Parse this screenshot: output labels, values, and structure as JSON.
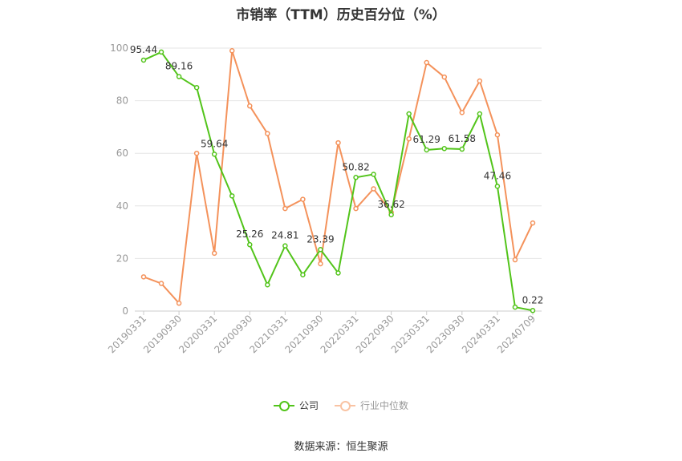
{
  "chart_data": {
    "type": "line",
    "title": "市销率（TTM）历史百分位（%）",
    "x_tick_labels": [
      "20190331",
      "20190930",
      "20200331",
      "20200930",
      "20210331",
      "20210930",
      "20220331",
      "20220930",
      "20230331",
      "20230930",
      "20240331",
      "20240709"
    ],
    "ylim": [
      0,
      100
    ],
    "y_ticks": [
      0,
      20,
      40,
      60,
      80,
      100
    ],
    "grid": true,
    "legend_position": "bottom-center",
    "series": [
      {
        "name": "公司",
        "color": "#52c41a",
        "values": [
          95.44,
          98.5,
          89.16,
          85.0,
          59.64,
          43.8,
          25.26,
          10.0,
          24.81,
          13.8,
          23.39,
          14.5,
          50.82,
          52.0,
          36.62,
          75.0,
          61.29,
          61.8,
          61.58,
          75.0,
          47.46,
          1.5,
          0.22
        ],
        "data_labels": {
          "0": "95.44",
          "2": "89.16",
          "4": "59.64",
          "6": "25.26",
          "8": "24.81",
          "10": "23.39",
          "12": "50.82",
          "14": "36.62",
          "16": "61.29",
          "18": "61.58",
          "20": "47.46",
          "22": "0.22"
        }
      },
      {
        "name": "行业中位数",
        "color": "#f4925b",
        "values": [
          13.0,
          10.5,
          3.0,
          60.0,
          22.0,
          99.0,
          78.0,
          67.5,
          39.0,
          42.5,
          18.0,
          64.0,
          39.0,
          46.5,
          37.5,
          65.5,
          94.5,
          89.0,
          75.5,
          87.5,
          67.0,
          19.5,
          33.5
        ]
      }
    ]
  },
  "legend": {
    "company": "公司",
    "industry": "行业中位数"
  },
  "source": "数据来源：恒生聚源"
}
